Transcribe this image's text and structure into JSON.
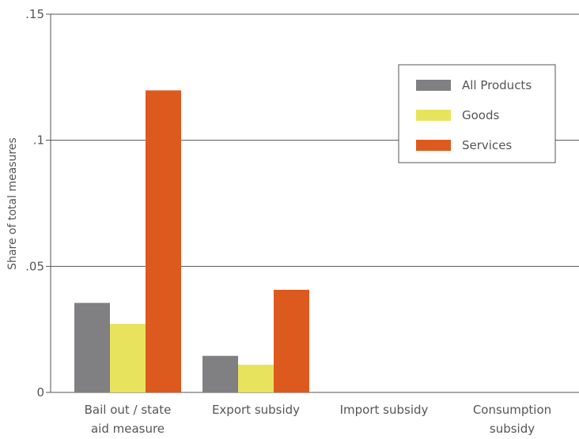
{
  "chart_data": {
    "type": "bar",
    "title": "",
    "xlabel": "",
    "ylabel": "Share of total measures",
    "ylim": [
      0,
      0.15
    ],
    "yticks": [
      0,
      0.05,
      0.1,
      0.15
    ],
    "ytick_labels": [
      "0",
      ".05",
      ".1",
      ".15"
    ],
    "grid": true,
    "legend_position": "top-right",
    "categories": [
      [
        "Bail out / state",
        "aid measure"
      ],
      [
        "Export subsidy"
      ],
      [
        "Import subsidy"
      ],
      [
        "Consumption",
        "subsidy"
      ]
    ],
    "series": [
      {
        "name": "All Products",
        "color": "#808083",
        "values": [
          0.0355,
          0.0145,
          0,
          0
        ]
      },
      {
        "name": "Goods",
        "color": "#e8e35c",
        "values": [
          0.0272,
          0.011,
          0,
          0
        ]
      },
      {
        "name": "Services",
        "color": "#dd5a1f",
        "values": [
          0.1198,
          0.0407,
          0,
          0
        ]
      }
    ]
  }
}
